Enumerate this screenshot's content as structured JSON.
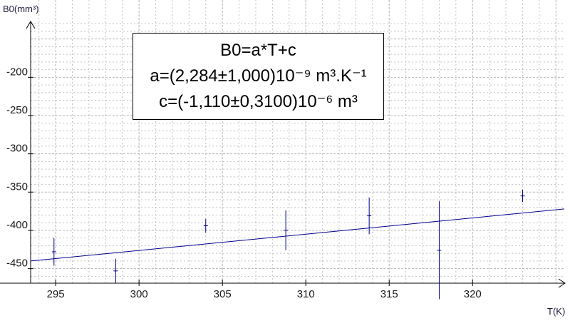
{
  "chart_data": {
    "type": "scatter",
    "xlabel": "T(K)",
    "ylabel": "B0(mm³)",
    "xlim": [
      293.5,
      325.5
    ],
    "ylim": [
      -469,
      -127
    ],
    "x_ticks": [
      295,
      300,
      305,
      310,
      315,
      320
    ],
    "y_ticks": [
      -200,
      -250,
      -300,
      -350,
      -400,
      -450
    ],
    "x_tick_labels": [
      "295",
      "300",
      "305",
      "310",
      "315",
      "320"
    ],
    "y_tick_labels": [
      "-200",
      "-250",
      "-300",
      "-350",
      "-400",
      "-450"
    ],
    "grid": true,
    "series": [
      {
        "points": [
          {
            "x": 294.9,
            "y": -428,
            "yerr": 18
          },
          {
            "x": 298.6,
            "y": -453,
            "yerr": 16
          },
          {
            "x": 304.0,
            "y": -394,
            "yerr": 9
          },
          {
            "x": 308.8,
            "y": -400,
            "yerr": 26
          },
          {
            "x": 313.8,
            "y": -381,
            "yerr": 24
          },
          {
            "x": 318.0,
            "y": -426,
            "yerr": 64
          },
          {
            "x": 323.0,
            "y": -355,
            "yerr": 8
          }
        ]
      }
    ],
    "fit_line": {
      "x_start": 293.5,
      "y_start": -440,
      "x_end": 325.5,
      "y_end": -372
    },
    "annotation": {
      "line1": "B0=a*T+c",
      "line2": "a=(2,284±1,000)10⁻⁹ m³.K⁻¹",
      "line3": "c=(-1,110±0,3100)10⁻⁶ m³"
    },
    "colors": {
      "data": "#00008b",
      "axis": "#000000",
      "grid": "#b4b4b4"
    }
  }
}
